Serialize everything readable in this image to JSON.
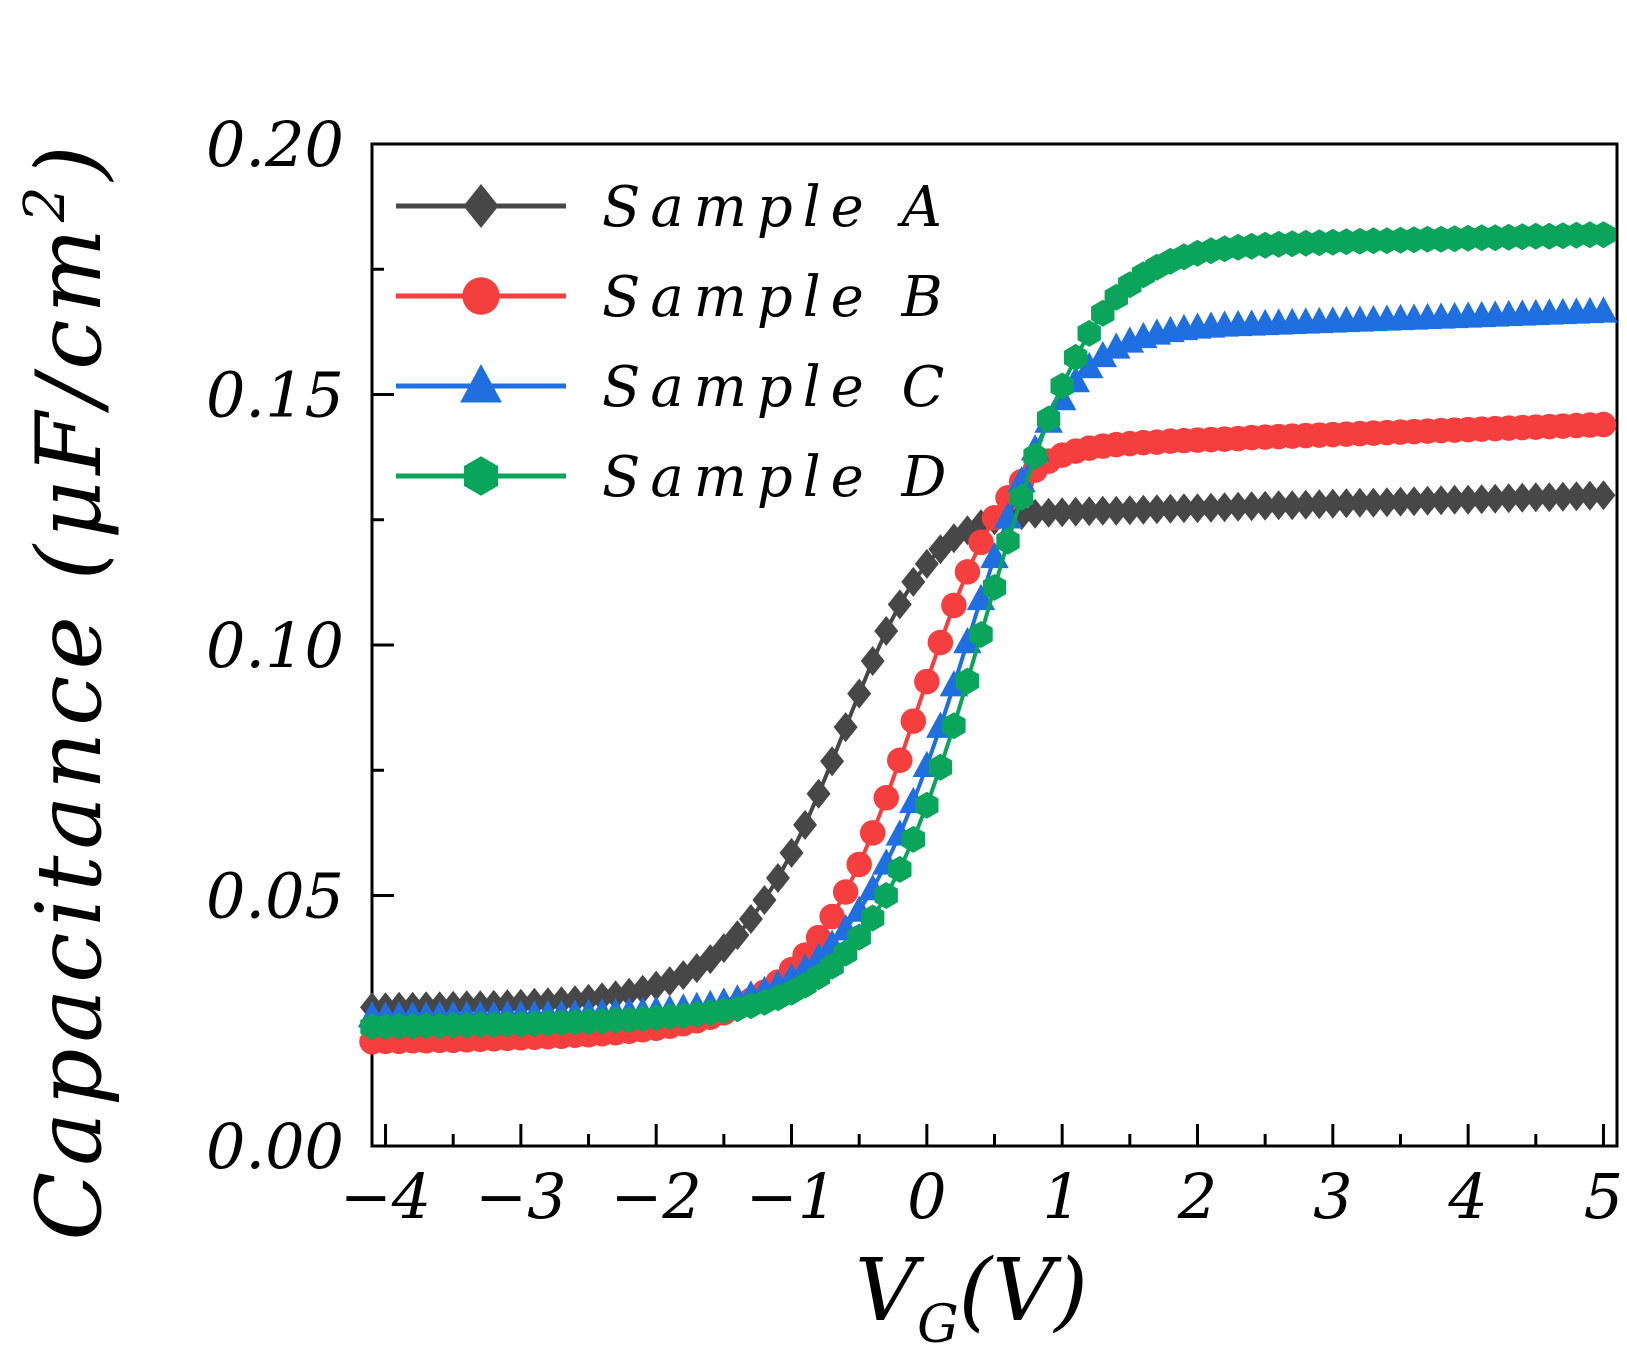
{
  "chart_data": {
    "type": "line",
    "title": "",
    "xlabel": "V_G(V)",
    "xlabel_main": "V",
    "xlabel_sub": "G",
    "xlabel_unit": "(V)",
    "ylabel": "Capacitance (μF/cm²)",
    "ylabel_text": "Capacitance",
    "ylabel_unit": "(μF/cm",
    "ylabel_sup": "2",
    "ylabel_close": ")",
    "xlim": [
      -4.1,
      5.1
    ],
    "ylim": [
      0.0,
      0.2
    ],
    "xticks": [
      -4,
      -3,
      -2,
      -1,
      0,
      1,
      2,
      3,
      4,
      5
    ],
    "xtick_labels": [
      "−4",
      "−3",
      "−2",
      "−1",
      "0",
      "1",
      "2",
      "3",
      "4",
      "5"
    ],
    "yticks": [
      0.0,
      0.05,
      0.1,
      0.15,
      0.2
    ],
    "ytick_labels": [
      "0.00",
      "0.05",
      "0.10",
      "0.15",
      "0.20"
    ],
    "legend_position": "top-left",
    "series": [
      {
        "name": "Sample A",
        "color": "#474747",
        "marker": "diamond",
        "x": [
          -4.1,
          -4.0,
          -3.9,
          -3.8,
          -3.7,
          -3.6,
          -3.5,
          -3.4,
          -3.3,
          -3.2,
          -3.1,
          -3.0,
          -2.9,
          -2.8,
          -2.7,
          -2.6,
          -2.5,
          -2.4,
          -2.3,
          -2.2,
          -2.1,
          -2.0,
          -1.9,
          -1.8,
          -1.7,
          -1.6,
          -1.5,
          -1.4,
          -1.3,
          -1.2,
          -1.1,
          -1.0,
          -0.9,
          -0.8,
          -0.7,
          -0.6,
          -0.5,
          -0.4,
          -0.3,
          -0.2,
          -0.1,
          0.0,
          0.1,
          0.2,
          0.3,
          0.4,
          0.5,
          0.6,
          0.7,
          0.8,
          0.9,
          1.0,
          1.1,
          1.2,
          1.3,
          1.4,
          1.5,
          1.6,
          1.7,
          1.8,
          1.9,
          2.0,
          2.1,
          2.2,
          2.3,
          2.4,
          2.5,
          2.6,
          2.7,
          2.8,
          2.9,
          3.0,
          3.1,
          3.2,
          3.3,
          3.4,
          3.5,
          3.6,
          3.7,
          3.8,
          3.9,
          4.0,
          4.1,
          4.2,
          4.3,
          4.4,
          4.5,
          4.6,
          4.7,
          4.8,
          4.9,
          5.0
        ],
        "y": [
          0.0277,
          0.0277,
          0.0278,
          0.0278,
          0.0279,
          0.0279,
          0.028,
          0.0281,
          0.0281,
          0.0282,
          0.0283,
          0.0284,
          0.0286,
          0.0287,
          0.0289,
          0.0291,
          0.0294,
          0.0297,
          0.0301,
          0.0306,
          0.0312,
          0.032,
          0.0329,
          0.0341,
          0.0355,
          0.0373,
          0.0395,
          0.0421,
          0.0453,
          0.0491,
          0.0535,
          0.0585,
          0.0641,
          0.0703,
          0.0768,
          0.0836,
          0.0903,
          0.0968,
          0.1028,
          0.1081,
          0.1126,
          0.1162,
          0.1191,
          0.1213,
          0.1229,
          0.1241,
          0.1249,
          0.1255,
          0.1259,
          0.1262,
          0.1264,
          0.1265,
          0.1266,
          0.1267,
          0.1268,
          0.1268,
          0.1269,
          0.127,
          0.1271,
          0.1272,
          0.1273,
          0.1273,
          0.1274,
          0.1275,
          0.1276,
          0.1277,
          0.1278,
          0.1279,
          0.1279,
          0.128,
          0.1281,
          0.1282,
          0.1283,
          0.1284,
          0.1284,
          0.1285,
          0.1286,
          0.1287,
          0.1288,
          0.1289,
          0.129,
          0.129,
          0.1291,
          0.1292,
          0.1293,
          0.1294,
          0.1295,
          0.1295,
          0.1296,
          0.1297,
          0.1298,
          0.1299
        ]
      },
      {
        "name": "Sample B",
        "color": "#f53e3e",
        "marker": "circle",
        "x": [
          -4.1,
          -4.0,
          -3.9,
          -3.8,
          -3.7,
          -3.6,
          -3.5,
          -3.4,
          -3.3,
          -3.2,
          -3.1,
          -3.0,
          -2.9,
          -2.8,
          -2.7,
          -2.6,
          -2.5,
          -2.4,
          -2.3,
          -2.2,
          -2.1,
          -2.0,
          -1.9,
          -1.8,
          -1.7,
          -1.6,
          -1.5,
          -1.4,
          -1.3,
          -1.2,
          -1.1,
          -1.0,
          -0.9,
          -0.8,
          -0.7,
          -0.6,
          -0.5,
          -0.4,
          -0.3,
          -0.2,
          -0.1,
          0.0,
          0.1,
          0.2,
          0.3,
          0.4,
          0.5,
          0.6,
          0.7,
          0.8,
          0.9,
          1.0,
          1.1,
          1.2,
          1.3,
          1.4,
          1.5,
          1.6,
          1.7,
          1.8,
          1.9,
          2.0,
          2.1,
          2.2,
          2.3,
          2.4,
          2.5,
          2.6,
          2.7,
          2.8,
          2.9,
          3.0,
          3.1,
          3.2,
          3.3,
          3.4,
          3.5,
          3.6,
          3.7,
          3.8,
          3.9,
          4.0,
          4.1,
          4.2,
          4.3,
          4.4,
          4.5,
          4.6,
          4.7,
          4.8,
          4.9,
          5.0
        ],
        "y": [
          0.0208,
          0.0209,
          0.0209,
          0.021,
          0.021,
          0.0211,
          0.0211,
          0.0212,
          0.0213,
          0.0214,
          0.0215,
          0.0216,
          0.0217,
          0.0218,
          0.0219,
          0.0221,
          0.0222,
          0.0224,
          0.0226,
          0.0229,
          0.0232,
          0.0235,
          0.0239,
          0.0244,
          0.025,
          0.0257,
          0.0266,
          0.0277,
          0.0291,
          0.0307,
          0.0327,
          0.0352,
          0.0381,
          0.0416,
          0.0458,
          0.0507,
          0.0562,
          0.0625,
          0.0695,
          0.077,
          0.0848,
          0.0927,
          0.1005,
          0.1079,
          0.1146,
          0.1205,
          0.1254,
          0.1294,
          0.1326,
          0.1349,
          0.1367,
          0.1379,
          0.1387,
          0.1393,
          0.1397,
          0.14,
          0.1402,
          0.1404,
          0.1405,
          0.1407,
          0.1408,
          0.1409,
          0.141,
          0.1411,
          0.1412,
          0.1414,
          0.1415,
          0.1416,
          0.1417,
          0.1418,
          0.1419,
          0.142,
          0.1421,
          0.1422,
          0.1423,
          0.1424,
          0.1425,
          0.1426,
          0.1427,
          0.1428,
          0.1429,
          0.143,
          0.1431,
          0.1432,
          0.1433,
          0.1434,
          0.1435,
          0.1436,
          0.1437,
          0.1438,
          0.1439,
          0.144
        ]
      },
      {
        "name": "Sample C",
        "color": "#1f6fe0",
        "marker": "triangle",
        "x": [
          -4.1,
          -4.0,
          -3.9,
          -3.8,
          -3.7,
          -3.6,
          -3.5,
          -3.4,
          -3.3,
          -3.2,
          -3.1,
          -3.0,
          -2.9,
          -2.8,
          -2.7,
          -2.6,
          -2.5,
          -2.4,
          -2.3,
          -2.2,
          -2.1,
          -2.0,
          -1.9,
          -1.8,
          -1.7,
          -1.6,
          -1.5,
          -1.4,
          -1.3,
          -1.2,
          -1.1,
          -1.0,
          -0.9,
          -0.8,
          -0.7,
          -0.6,
          -0.5,
          -0.4,
          -0.3,
          -0.2,
          -0.1,
          0.0,
          0.1,
          0.2,
          0.3,
          0.4,
          0.5,
          0.6,
          0.7,
          0.8,
          0.9,
          1.0,
          1.1,
          1.2,
          1.3,
          1.4,
          1.5,
          1.6,
          1.7,
          1.8,
          1.9,
          2.0,
          2.1,
          2.2,
          2.3,
          2.4,
          2.5,
          2.6,
          2.7,
          2.8,
          2.9,
          3.0,
          3.1,
          3.2,
          3.3,
          3.4,
          3.5,
          3.6,
          3.7,
          3.8,
          3.9,
          4.0,
          4.1,
          4.2,
          4.3,
          4.4,
          4.5,
          4.6,
          4.7,
          4.8,
          4.9,
          5.0
        ],
        "y": [
          0.0259,
          0.0259,
          0.0259,
          0.0259,
          0.0259,
          0.026,
          0.026,
          0.026,
          0.026,
          0.026,
          0.0261,
          0.0261,
          0.0261,
          0.0262,
          0.0262,
          0.0263,
          0.0264,
          0.0265,
          0.0266,
          0.0267,
          0.0268,
          0.027,
          0.0272,
          0.0275,
          0.0278,
          0.0282,
          0.0287,
          0.0293,
          0.0301,
          0.031,
          0.0322,
          0.0336,
          0.0354,
          0.0376,
          0.0402,
          0.0433,
          0.047,
          0.0513,
          0.0564,
          0.0622,
          0.0687,
          0.0759,
          0.0837,
          0.092,
          0.1006,
          0.1092,
          0.1176,
          0.1255,
          0.1327,
          0.1391,
          0.1446,
          0.1491,
          0.1527,
          0.1555,
          0.1577,
          0.1594,
          0.1606,
          0.1615,
          0.1622,
          0.1627,
          0.1631,
          0.1634,
          0.1636,
          0.1638,
          0.1639,
          0.164,
          0.1641,
          0.1642,
          0.1643,
          0.1644,
          0.1645,
          0.1646,
          0.1647,
          0.1648,
          0.1649,
          0.165,
          0.1651,
          0.1652,
          0.1653,
          0.1654,
          0.1655,
          0.1656,
          0.1657,
          0.1658,
          0.1659,
          0.166,
          0.1661,
          0.1662,
          0.1663,
          0.1664,
          0.1665,
          0.1666
        ]
      },
      {
        "name": "Sample D",
        "color": "#0aa55a",
        "marker": "hexagon",
        "x": [
          -4.1,
          -4.0,
          -3.9,
          -3.8,
          -3.7,
          -3.6,
          -3.5,
          -3.4,
          -3.3,
          -3.2,
          -3.1,
          -3.0,
          -2.9,
          -2.8,
          -2.7,
          -2.6,
          -2.5,
          -2.4,
          -2.3,
          -2.2,
          -2.1,
          -2.0,
          -1.9,
          -1.8,
          -1.7,
          -1.6,
          -1.5,
          -1.4,
          -1.3,
          -1.2,
          -1.1,
          -1.0,
          -0.9,
          -0.8,
          -0.7,
          -0.6,
          -0.5,
          -0.4,
          -0.3,
          -0.2,
          -0.1,
          0.0,
          0.1,
          0.2,
          0.3,
          0.4,
          0.5,
          0.6,
          0.7,
          0.8,
          0.9,
          1.0,
          1.1,
          1.2,
          1.3,
          1.4,
          1.5,
          1.6,
          1.7,
          1.8,
          1.9,
          2.0,
          2.1,
          2.2,
          2.3,
          2.4,
          2.5,
          2.6,
          2.7,
          2.8,
          2.9,
          3.0,
          3.1,
          3.2,
          3.3,
          3.4,
          3.5,
          3.6,
          3.7,
          3.8,
          3.9,
          4.0,
          4.1,
          4.2,
          4.3,
          4.4,
          4.5,
          4.6,
          4.7,
          4.8,
          4.9,
          5.0
        ],
        "y": [
          0.0238,
          0.0238,
          0.0239,
          0.0239,
          0.024,
          0.024,
          0.0241,
          0.0241,
          0.0242,
          0.0242,
          0.0243,
          0.0243,
          0.0244,
          0.0245,
          0.0246,
          0.0247,
          0.0248,
          0.0249,
          0.0251,
          0.0252,
          0.0254,
          0.0256,
          0.0258,
          0.026,
          0.0263,
          0.0266,
          0.027,
          0.0274,
          0.028,
          0.0287,
          0.0296,
          0.0307,
          0.0321,
          0.0338,
          0.0359,
          0.0385,
          0.0417,
          0.0455,
          0.05,
          0.0552,
          0.0612,
          0.068,
          0.0756,
          0.0839,
          0.0928,
          0.1021,
          0.1115,
          0.1207,
          0.1295,
          0.1377,
          0.1451,
          0.1517,
          0.1574,
          0.1622,
          0.1662,
          0.1694,
          0.1719,
          0.1739,
          0.1754,
          0.1766,
          0.1775,
          0.1782,
          0.1787,
          0.1791,
          0.1794,
          0.1796,
          0.1798,
          0.18,
          0.1801,
          0.1802,
          0.1803,
          0.1804,
          0.1805,
          0.1806,
          0.1807,
          0.1807,
          0.1808,
          0.1809,
          0.181,
          0.181,
          0.1811,
          0.1812,
          0.1813,
          0.1813,
          0.1814,
          0.1815,
          0.1816,
          0.1816,
          0.1817,
          0.1818,
          0.1819,
          0.1819
        ]
      }
    ]
  }
}
